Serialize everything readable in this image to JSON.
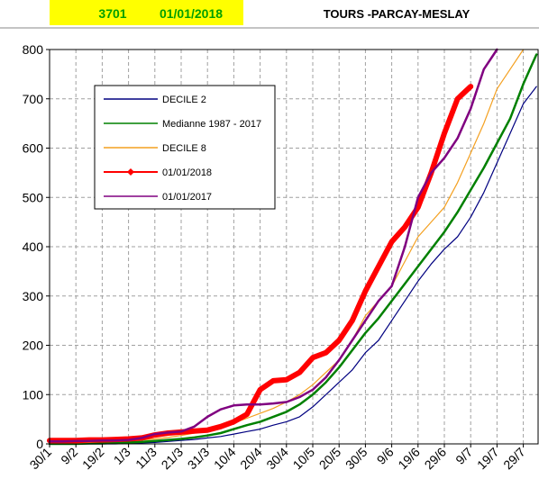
{
  "header": {
    "station": "3701",
    "date": "01/01/2018",
    "location": "TOURS -PARCAY-MESLAY"
  },
  "chart_data": {
    "type": "line",
    "categories": [
      "30/1",
      null,
      "9/2",
      null,
      "19/2",
      null,
      "1/3",
      null,
      "11/3",
      null,
      "21/3",
      null,
      "31/3",
      null,
      "10/4",
      null,
      "20/4",
      null,
      "30/4",
      null,
      "10/5",
      null,
      "20/5",
      null,
      "30/5",
      null,
      "9/6",
      null,
      "19/6",
      null,
      "29/6",
      null,
      "9/7",
      null,
      "19/7",
      null,
      "29/7",
      null
    ],
    "series": [
      {
        "name": "DECILE 2",
        "color": "#000080",
        "values": [
          0,
          0,
          0,
          0,
          0,
          0,
          1,
          2,
          3,
          5,
          7,
          9,
          12,
          15,
          20,
          25,
          30,
          38,
          45,
          55,
          75,
          100,
          125,
          150,
          185,
          210,
          250,
          290,
          330,
          365,
          395,
          420,
          460,
          510,
          570,
          630,
          690,
          725
        ]
      },
      {
        "name": "Medianne 1987 - 2017",
        "color": "#008000",
        "values": [
          0,
          0,
          0,
          1,
          1,
          2,
          3,
          4,
          6,
          8,
          10,
          13,
          17,
          22,
          30,
          38,
          45,
          55,
          65,
          80,
          100,
          125,
          155,
          190,
          225,
          255,
          290,
          325,
          360,
          395,
          430,
          470,
          515,
          560,
          610,
          660,
          730,
          790
        ]
      },
      {
        "name": "DECILE 8",
        "color": "#f4a020",
        "values": [
          1,
          1,
          2,
          3,
          4,
          5,
          6,
          8,
          10,
          13,
          17,
          22,
          28,
          35,
          42,
          52,
          62,
          72,
          85,
          100,
          120,
          145,
          170,
          210,
          260,
          290,
          320,
          370,
          420,
          450,
          480,
          530,
          590,
          650,
          720,
          760,
          800,
          null
        ]
      },
      {
        "name": "01/01/2018",
        "color": "#ff0000",
        "values": [
          7,
          7,
          7,
          8,
          8,
          9,
          10,
          12,
          18,
          22,
          24,
          26,
          28,
          35,
          45,
          60,
          110,
          128,
          130,
          145,
          175,
          185,
          210,
          250,
          310,
          360,
          410,
          440,
          480,
          550,
          630,
          700,
          725,
          null,
          null,
          null,
          null,
          null
        ]
      },
      {
        "name": "01/01/2017",
        "color": "#800080",
        "values": [
          5,
          5,
          6,
          6,
          7,
          7,
          8,
          12,
          20,
          23,
          25,
          35,
          55,
          70,
          78,
          80,
          80,
          82,
          85,
          95,
          110,
          135,
          170,
          210,
          250,
          290,
          320,
          400,
          500,
          550,
          580,
          620,
          680,
          760,
          800,
          null,
          null,
          null
        ]
      }
    ],
    "ylim": [
      0,
      800
    ],
    "yticks": [
      0,
      100,
      200,
      300,
      400,
      500,
      600,
      700,
      800
    ],
    "grid": true
  }
}
